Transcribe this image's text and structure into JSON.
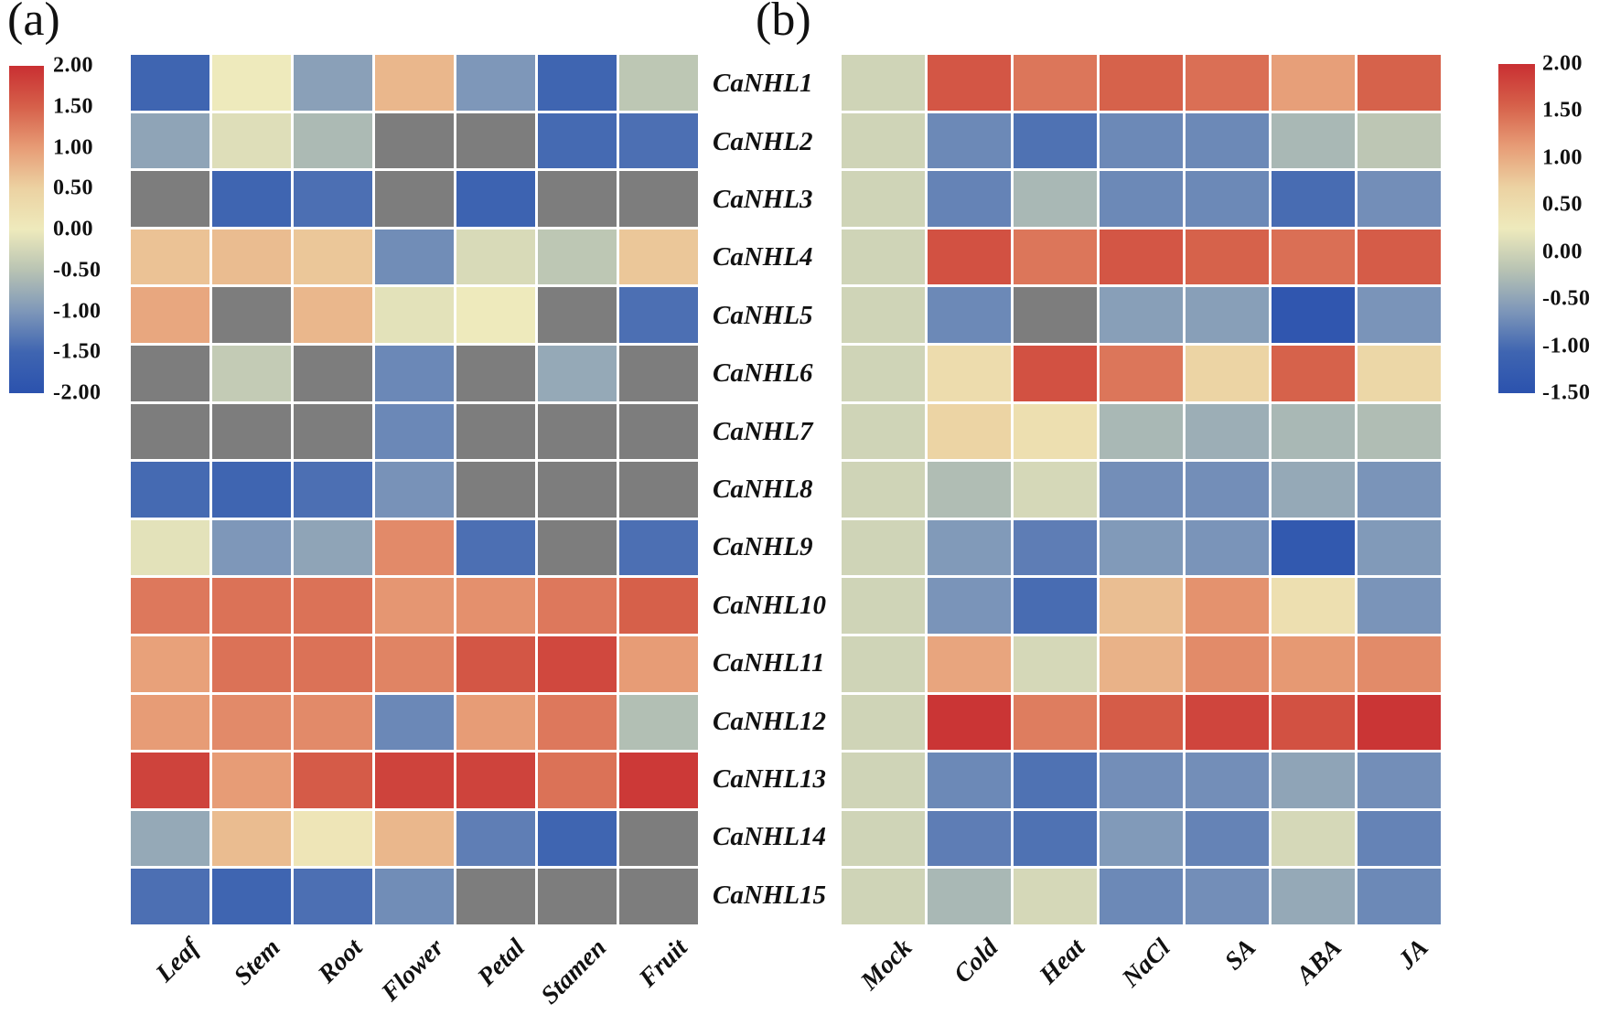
{
  "figure": {
    "panel_a_label": "(a)",
    "panel_b_label": "(b)"
  },
  "colormap": {
    "na_color": "#7d7d7d",
    "gap_color": "#ffffff",
    "stops": [
      {
        "frac": 0.0,
        "color": "#c92f32"
      },
      {
        "frac": 0.125,
        "color": "#d6604a"
      },
      {
        "frac": 0.25,
        "color": "#e79c76"
      },
      {
        "frac": 0.375,
        "color": "#ecd2a2"
      },
      {
        "frac": 0.5,
        "color": "#eeeabc"
      },
      {
        "frac": 0.625,
        "color": "#b8c3b3"
      },
      {
        "frac": 0.75,
        "color": "#7e97b9"
      },
      {
        "frac": 0.875,
        "color": "#3f65b1"
      },
      {
        "frac": 1.0,
        "color": "#2b52ae"
      }
    ]
  },
  "chart_data": [
    {
      "type": "heatmap",
      "panel": "a",
      "title": "",
      "legend_position": "left",
      "vmax": 2.0,
      "vmin": -2.0,
      "colorbar_ticks": [
        "2.00",
        "1.50",
        "1.00",
        "0.50",
        "0.00",
        "-0.50",
        "-1.00",
        "-1.50",
        "-2.00"
      ],
      "columns": [
        "Leaf",
        "Stem",
        "Root",
        "Flower",
        "Petal",
        "Stamen",
        "Fruit"
      ],
      "rows": [
        "CaNHL1",
        "CaNHL2",
        "CaNHL3",
        "CaNHL4",
        "CaNHL5",
        "CaNHL6",
        "CaNHL7",
        "CaNHL8",
        "CaNHL9",
        "CaNHL10",
        "CaNHL11",
        "CaNHL12",
        "CaNHL13",
        "CaNHL14",
        "CaNHL15"
      ],
      "na_meaning": "gray cell = not detected",
      "values": [
        [
          -1.5,
          0.0,
          -0.9,
          0.75,
          -1.0,
          -1.5,
          -0.45
        ],
        [
          -0.85,
          -0.15,
          -0.6,
          null,
          null,
          -1.45,
          -1.4
        ],
        [
          null,
          -1.5,
          -1.4,
          null,
          -1.55,
          null,
          null
        ],
        [
          0.65,
          0.7,
          0.6,
          -1.1,
          -0.2,
          -0.45,
          0.6
        ],
        [
          0.9,
          null,
          0.75,
          -0.1,
          0.0,
          null,
          -1.4
        ],
        [
          null,
          -0.4,
          null,
          -1.15,
          null,
          -0.8,
          null
        ],
        [
          null,
          null,
          null,
          -1.15,
          null,
          null,
          null
        ],
        [
          -1.45,
          -1.5,
          -1.4,
          -1.05,
          null,
          null,
          null
        ],
        [
          -0.1,
          -1.0,
          -0.85,
          1.15,
          -1.4,
          null,
          -1.4
        ],
        [
          1.3,
          1.35,
          1.35,
          1.05,
          1.1,
          1.3,
          1.5
        ],
        [
          0.95,
          1.35,
          1.35,
          1.2,
          1.6,
          1.75,
          1.0
        ],
        [
          1.0,
          1.15,
          1.15,
          -1.15,
          1.0,
          1.3,
          -0.55
        ],
        [
          1.8,
          1.0,
          1.55,
          1.8,
          1.8,
          1.35,
          1.9
        ],
        [
          -0.8,
          0.7,
          0.1,
          0.75,
          -1.25,
          -1.5,
          null
        ],
        [
          -1.4,
          -1.5,
          -1.4,
          -1.1,
          null,
          null,
          null
        ]
      ]
    },
    {
      "type": "heatmap",
      "panel": "b",
      "title": "",
      "legend_position": "right",
      "vmax": 2.0,
      "vmin": -1.5,
      "colorbar_ticks": [
        "2.00",
        "1.50",
        "1.00",
        "0.50",
        "0.00",
        "-0.50",
        "-1.00",
        "-1.50"
      ],
      "columns": [
        "Mock",
        "Cold",
        "Heat",
        "NaCl",
        "SA",
        "ABA",
        "JA"
      ],
      "rows": [
        "CaNHL1",
        "CaNHL2",
        "CaNHL3",
        "CaNHL4",
        "CaNHL5",
        "CaNHL6",
        "CaNHL7",
        "CaNHL8",
        "CaNHL9",
        "CaNHL10",
        "CaNHL11",
        "CaNHL12",
        "CaNHL13",
        "CaNHL14",
        "CaNHL15"
      ],
      "na_meaning": "gray cell = not detected",
      "values": [
        [
          0.0,
          1.65,
          1.4,
          1.55,
          1.45,
          1.1,
          1.55
        ],
        [
          0.0,
          -0.75,
          -0.95,
          -0.75,
          -0.75,
          -0.3,
          -0.15
        ],
        [
          0.0,
          -0.8,
          -0.3,
          -0.75,
          -0.75,
          -1.0,
          -0.7
        ],
        [
          0.0,
          1.7,
          1.4,
          1.65,
          1.55,
          1.45,
          1.6
        ],
        [
          0.0,
          -0.75,
          null,
          -0.55,
          -0.55,
          -1.4,
          -0.65
        ],
        [
          0.0,
          0.5,
          1.7,
          1.4,
          0.65,
          1.55,
          0.6
        ],
        [
          0.0,
          0.65,
          0.45,
          -0.3,
          -0.4,
          -0.3,
          -0.25
        ],
        [
          0.0,
          -0.25,
          0.05,
          -0.7,
          -0.7,
          -0.45,
          -0.65
        ],
        [
          0.0,
          -0.6,
          -0.85,
          -0.6,
          -0.65,
          -1.35,
          -0.6
        ],
        [
          0.0,
          -0.65,
          -1.0,
          0.85,
          1.2,
          0.45,
          -0.65
        ],
        [
          0.0,
          1.05,
          0.05,
          0.95,
          1.25,
          1.15,
          1.25
        ],
        [
          0.0,
          1.95,
          1.35,
          1.6,
          1.8,
          1.7,
          1.95
        ],
        [
          0.0,
          -0.75,
          -0.95,
          -0.7,
          -0.7,
          -0.5,
          -0.7
        ],
        [
          0.0,
          -0.85,
          -0.95,
          -0.6,
          -0.8,
          0.05,
          -0.8
        ],
        [
          0.0,
          -0.3,
          0.05,
          -0.75,
          -0.7,
          -0.45,
          -0.75
        ]
      ]
    }
  ]
}
